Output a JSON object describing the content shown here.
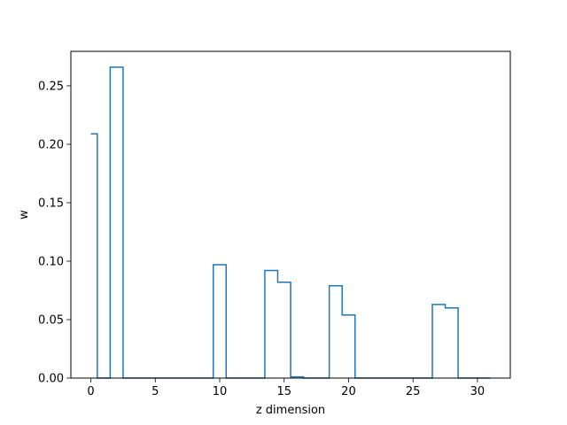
{
  "chart_data": {
    "type": "line",
    "style": "step",
    "xlabel": "z dimension",
    "ylabel": "w",
    "xlim": [
      -1.55,
      32.55
    ],
    "ylim": [
      0,
      0.2795
    ],
    "x_ticks": [
      0,
      5,
      10,
      15,
      20,
      25,
      30
    ],
    "x_tick_labels": [
      "0",
      "5",
      "10",
      "15",
      "20",
      "25",
      "30"
    ],
    "y_ticks": [
      0,
      0.05,
      0.1,
      0.15,
      0.2,
      0.25
    ],
    "y_tick_labels": [
      "0.00",
      "0.05",
      "0.10",
      "0.15",
      "0.20",
      "0.25"
    ],
    "grid": false,
    "series": [
      {
        "color": "#1f77b4",
        "x": [
          0,
          1,
          2,
          3,
          4,
          5,
          6,
          7,
          8,
          9,
          10,
          11,
          12,
          13,
          14,
          15,
          16,
          17,
          18,
          19,
          20,
          21,
          22,
          23,
          24,
          25,
          26,
          27,
          28,
          29,
          30,
          31
        ],
        "values": [
          0.209,
          0.0,
          0.266,
          0.0,
          0.0,
          0.0,
          0.0,
          0.0,
          0.0,
          0.0,
          0.097,
          0.0,
          0.0,
          0.0,
          0.092,
          0.082,
          0.001,
          0.0,
          0.0,
          0.079,
          0.054,
          0.0,
          0.0,
          0.0,
          0.0,
          0.0,
          0.0,
          0.063,
          0.06,
          0.0,
          0.0,
          0.0
        ]
      }
    ]
  }
}
